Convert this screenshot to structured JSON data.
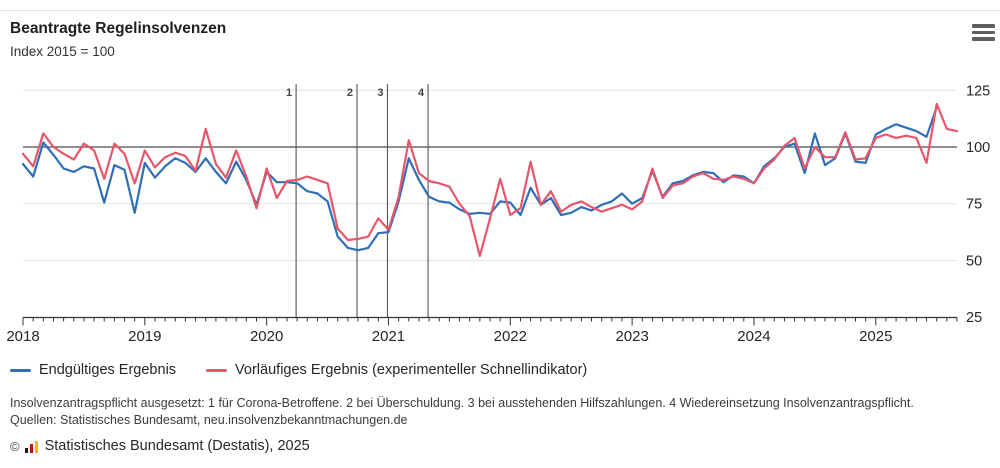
{
  "header": {
    "title": "Beantragte Regelinsolvenzen",
    "subtitle": "Index 2015 = 100",
    "menu_icon": "hamburger-menu"
  },
  "chart_data": {
    "type": "line",
    "title": "Beantragte Regelinsolvenzen",
    "subtitle_unit": "Index 2015 = 100",
    "frequency": "monthly",
    "x_start": "2018-01",
    "year_labels": [
      "2018",
      "2019",
      "2020",
      "2021",
      "2022",
      "2023",
      "2024",
      "2025"
    ],
    "y_ticks": [
      25,
      50,
      75,
      100,
      125
    ],
    "ylim": [
      25,
      125
    ],
    "reference_line": 100,
    "grid": "horizontal",
    "legend_position": "bottom",
    "colors": {
      "final": "#2e6fb7",
      "preliminary": "#e8566b",
      "grid": "#e3e3e3",
      "axis": "#333333",
      "reference": "#4a4a4a",
      "event": "#555555"
    },
    "series": [
      {
        "name": "Endgültiges Ergebnis",
        "color_key": "final",
        "values": [
          92.5,
          87,
          102,
          96.5,
          90.5,
          89,
          91.5,
          90.5,
          75.5,
          92,
          90,
          71,
          93,
          86.5,
          91.5,
          95,
          93,
          89,
          95,
          89,
          84,
          93.5,
          85.5,
          74.5,
          89,
          84.5,
          84.5,
          84,
          80.5,
          79.5,
          76,
          60.5,
          55.5,
          54.5,
          55.5,
          62,
          62.5,
          76,
          95,
          85.5,
          78,
          76,
          75.5,
          72.5,
          70.5,
          71,
          70.5,
          76,
          75.5,
          70,
          82,
          74.5,
          77.5,
          70,
          71,
          73.5,
          72,
          74.5,
          76,
          79.5,
          75,
          77.5,
          89.5,
          78,
          84,
          85,
          87.5,
          89,
          88.5,
          84.5,
          87.5,
          87,
          84,
          91.5,
          95,
          100,
          101.5,
          88.5,
          106,
          92,
          95,
          106,
          93.5,
          93,
          105.5,
          108,
          110,
          108.5,
          107,
          104.5,
          117.5
        ]
      },
      {
        "name": "Vorläufiges Ergebnis (experimenteller Schnellindikator)",
        "color_key": "preliminary",
        "values": [
          97,
          91.5,
          106,
          100,
          97,
          94.5,
          101.5,
          98.5,
          86,
          101.5,
          97,
          84,
          98.5,
          91,
          95.5,
          97.5,
          96,
          89.5,
          108,
          92.5,
          86.5,
          98.5,
          87,
          73,
          90.5,
          77.5,
          85,
          85.5,
          87,
          85.5,
          84,
          64,
          59,
          59.5,
          60.5,
          68.5,
          63.5,
          78,
          103,
          88.5,
          85,
          84,
          82.5,
          75,
          69.5,
          52,
          68.5,
          86,
          70,
          73,
          93.5,
          74.5,
          80.5,
          71.5,
          74.5,
          76,
          73.5,
          71.5,
          73,
          74.5,
          72.5,
          76,
          90.5,
          77.5,
          83,
          84,
          87,
          88.5,
          86,
          85.5,
          87,
          86,
          84,
          90.5,
          94.5,
          100.5,
          104,
          90.5,
          100,
          95.5,
          95.5,
          106.5,
          94.5,
          95,
          104,
          105.5,
          104,
          105,
          104,
          93,
          119,
          108,
          107
        ]
      }
    ],
    "event_lines": [
      {
        "label": "1",
        "month_index": 26.9
      },
      {
        "label": "2",
        "month_index": 32.9
      },
      {
        "label": "3",
        "month_index": 35.9
      },
      {
        "label": "4",
        "month_index": 39.9
      }
    ]
  },
  "legend": {
    "items": [
      {
        "label": "Endgültiges Ergebnis"
      },
      {
        "label": "Vorläufiges Ergebnis (experimenteller Schnellindikator)"
      }
    ]
  },
  "notes": {
    "footnote": "Insolvenzantragspflicht ausgesetzt: 1 für Corona-Betroffene. 2 bei Überschuldung. 3 bei ausstehenden Hilfszahlungen. 4 Wiedereinsetzung Insolvenzantragspflicht.",
    "source": "Quellen: Statistisches Bundesamt, neu.insolvenzbekanntmachungen.de"
  },
  "copyright": {
    "symbol": "©",
    "text": "Statistisches Bundesamt (Destatis), 2025",
    "logo_colors": {
      "bar1": "#1a1a1a",
      "bar2": "#cc0b0b",
      "bar3": "#f0bc00"
    }
  }
}
